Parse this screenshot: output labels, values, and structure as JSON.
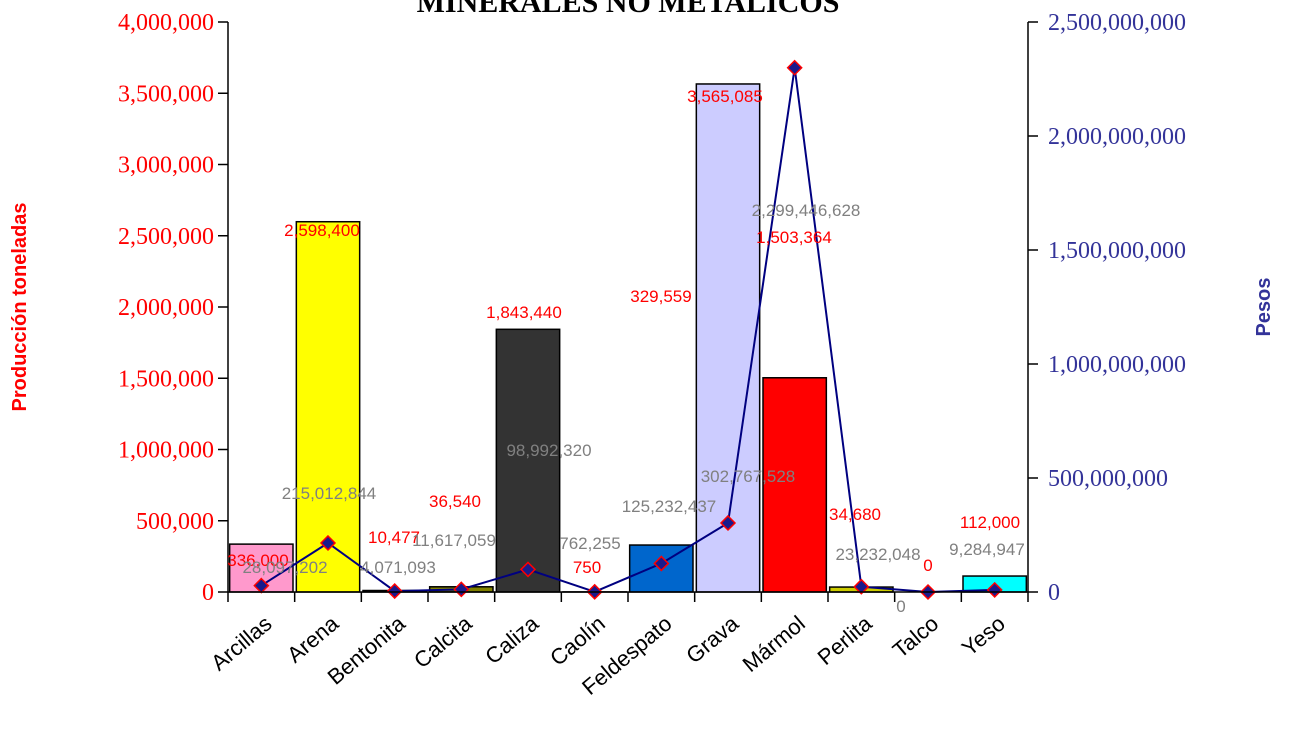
{
  "chart_data": {
    "type": "bar",
    "title": "MINERALES NO METALICOS",
    "ylabel": "Producción toneladas",
    "y2label": "Pesos",
    "ylim": [
      0,
      4000000
    ],
    "y2lim": [
      0,
      2500000000
    ],
    "categories": [
      "Arcillas",
      "Arena",
      "Bentonita",
      "Calcita",
      "Caliza",
      "Caolín",
      "Feldespato",
      "Grava",
      "Mármol",
      "Perlita",
      "Talco",
      "Yeso"
    ],
    "left_ticks": [
      "0",
      "500,000",
      "1,000,000",
      "1,500,000",
      "2,000,000",
      "2,500,000",
      "3,000,000",
      "3,500,000",
      "4,000,000"
    ],
    "left_tick_values": [
      0,
      500000,
      1000000,
      1500000,
      2000000,
      2500000,
      3000000,
      3500000,
      4000000
    ],
    "right_ticks": [
      "0",
      "500,000,000",
      "1,000,000,000",
      "1,500,000,000",
      "2,000,000,000",
      "2,500,000,000"
    ],
    "right_tick_values": [
      0,
      500000000,
      1000000000,
      1500000000,
      2000000000,
      2500000000
    ],
    "series": [
      {
        "name": "Producción toneladas",
        "type": "bar",
        "axis": "left",
        "values": [
          336000,
          2598400,
          10477,
          36540,
          1843440,
          750,
          329559,
          3565085,
          1503364,
          34680,
          0,
          112000
        ],
        "labels": [
          "336,000",
          "2,598,400",
          "10,477",
          "36,540",
          "1,843,440",
          "750",
          "329,559",
          "3,565,085",
          "1,503,364",
          "34,680",
          "0",
          "112,000"
        ],
        "colors": [
          "#ff99cc",
          "#ffff00",
          "#808000",
          "#808000",
          "#333333",
          "#ffffff",
          "#0066cc",
          "#ccccff",
          "#ff0000",
          "#cccc00",
          "#ffffff",
          "#00ffff"
        ]
      },
      {
        "name": "Pesos",
        "type": "line",
        "axis": "right",
        "values": [
          28097202,
          215012844,
          4071093,
          11617059,
          98992320,
          762255,
          125232437,
          302767528,
          2299446628,
          23232048,
          0,
          9284947
        ],
        "labels": [
          "28,097,202",
          "215,012,844",
          "4,071,093",
          "11,617,059",
          "98,992,320",
          "762,255",
          "125,232,437",
          "302,767,528",
          "2,299,446,628",
          "23,232,048",
          "0",
          "9,284,947"
        ],
        "color": "#000080",
        "marker_color": "#1a1a8c",
        "marker_edge": "#ff0000"
      }
    ],
    "colors": {
      "left_axis": "#ff0000",
      "right_axis": "#333399",
      "line_label": "#808080",
      "bar_label": "#ff0000"
    }
  }
}
